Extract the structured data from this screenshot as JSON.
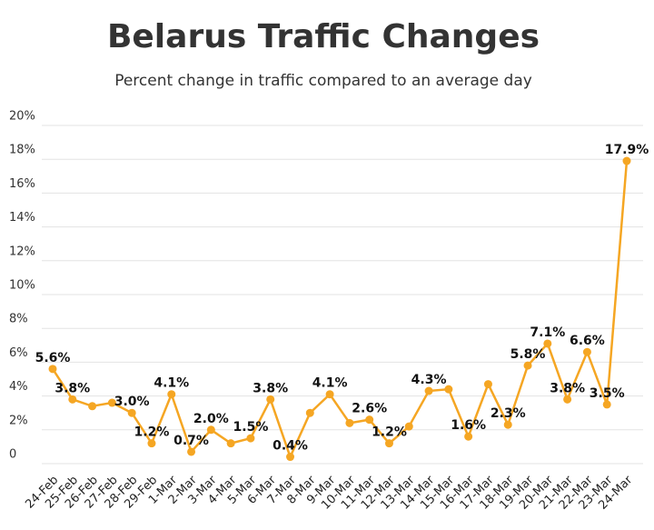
{
  "chart_data": {
    "type": "line",
    "title": "Belarus Traffic Changes",
    "subtitle": "Percent change in traffic compared to an average day",
    "categories": [
      "24-Feb",
      "25-Feb",
      "26-Feb",
      "27-Feb",
      "28-Feb",
      "29-Feb",
      "1-Mar",
      "2-Mar",
      "3-Mar",
      "4-Mar",
      "5-Mar",
      "6-Mar",
      "7-Mar",
      "8-Mar",
      "9-Mar",
      "10-Mar",
      "11-Mar",
      "12-Mar",
      "13-Mar",
      "14-Mar",
      "15-Mar",
      "16-Mar",
      "17-Mar",
      "18-Mar",
      "19-Mar",
      "20-Mar",
      "21-Mar",
      "22-Mar",
      "23-Mar",
      "24-Mar"
    ],
    "values": [
      5.6,
      3.8,
      3.4,
      3.6,
      3.0,
      1.2,
      4.1,
      0.7,
      2.0,
      1.2,
      1.5,
      3.8,
      0.4,
      3.0,
      4.1,
      2.4,
      2.6,
      1.2,
      2.2,
      4.3,
      4.4,
      1.6,
      4.7,
      2.3,
      5.8,
      7.1,
      3.8,
      6.6,
      3.5,
      17.9
    ],
    "value_labels": [
      "5.6%",
      "3.8%",
      null,
      null,
      "3.0%",
      "1.2%",
      "4.1%",
      "0.7%",
      "2.0%",
      null,
      "1.5%",
      "3.8%",
      "0.4%",
      null,
      "4.1%",
      null,
      "2.6%",
      "1.2%",
      null,
      "4.3%",
      null,
      "1.6%",
      null,
      "2.3%",
      "5.8%",
      "7.1%",
      "3.8%",
      "6.6%",
      "3.5%",
      "17.9%"
    ],
    "color": "#f5a623",
    "ylim": [
      0,
      20
    ],
    "yticks": [
      0,
      {
        "value": 2,
        "label": "2%"
      },
      {
        "value": 4,
        "label": "4%"
      },
      {
        "value": 6,
        "label": "6%"
      },
      {
        "value": 8,
        "label": "8%"
      },
      {
        "value": 10,
        "label": "10%"
      },
      {
        "value": 12,
        "label": "12%"
      },
      {
        "value": 14,
        "label": "14%"
      },
      {
        "value": 16,
        "label": "16%"
      },
      {
        "value": 18,
        "label": "18%"
      },
      {
        "value": 20,
        "label": "20%"
      }
    ],
    "grid": true
  }
}
